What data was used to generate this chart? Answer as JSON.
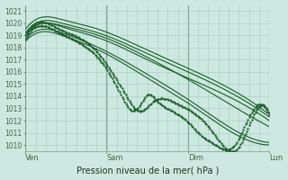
{
  "title": "Pression niveau de la mer( hPa )",
  "bg_color": "#cce8e0",
  "grid_color": "#a8ccbe",
  "line_color": "#1a5c28",
  "marker_color": "#1a5c28",
  "ylim": [
    1009.5,
    1021.5
  ],
  "yticks": [
    1010,
    1011,
    1012,
    1013,
    1014,
    1015,
    1016,
    1017,
    1018,
    1019,
    1020,
    1021
  ],
  "x_labels": [
    "Ven",
    "Sam",
    "Dim",
    "Lun"
  ],
  "x_vline_positions": [
    0.0,
    0.333,
    0.667,
    1.0
  ],
  "n_points": 400
}
